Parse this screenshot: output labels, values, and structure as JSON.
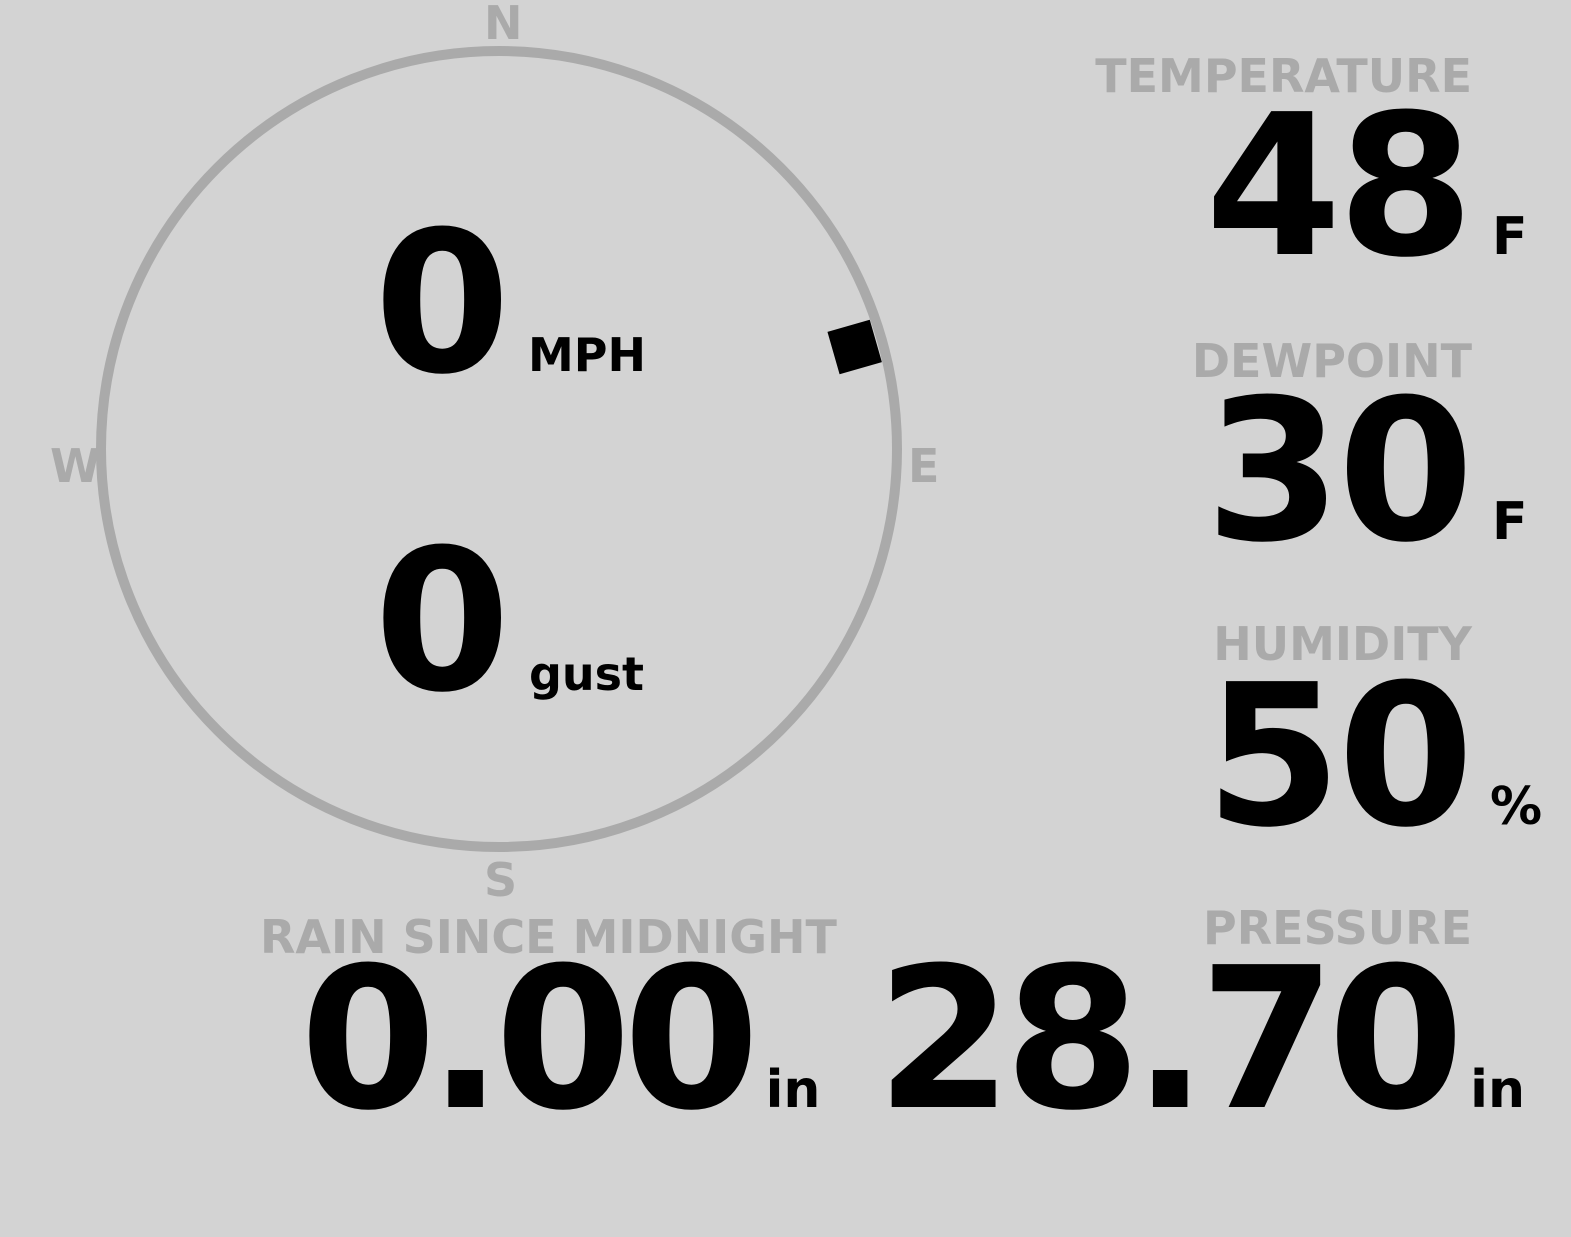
{
  "wind": {
    "speed": "0",
    "speed_unit": "MPH",
    "gust": "0",
    "gust_unit": "gust",
    "direction_degrees": 74,
    "compass": {
      "n": "N",
      "e": "E",
      "s": "S",
      "w": "W"
    }
  },
  "temperature": {
    "label": "TEMPERATURE",
    "value": "48",
    "unit": "F"
  },
  "dewpoint": {
    "label": "DEWPOINT",
    "value": "30",
    "unit": "F"
  },
  "humidity": {
    "label": "HUMIDITY",
    "value": "50",
    "unit": "%"
  },
  "pressure": {
    "label": "PRESSURE",
    "value": "28.70",
    "unit": "in"
  },
  "rain": {
    "label": "RAIN SINCE MIDNIGHT",
    "value": "0.00",
    "unit": "in"
  },
  "colors": {
    "background": "#d3d3d3",
    "label": "#aaaaaa",
    "value": "#000000",
    "dial": "#aaaaaa"
  }
}
